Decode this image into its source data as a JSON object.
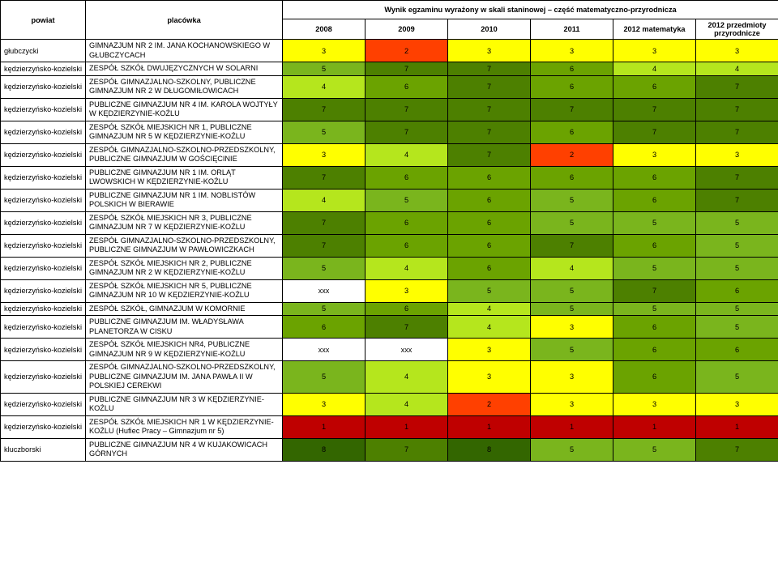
{
  "title": "Wynik egzaminu wyrażony w skali staninowej – część matematyczno-przyrodnicza",
  "headers": {
    "powiat": "powiat",
    "placowka": "placówka",
    "y2008": "2008",
    "y2009": "2009",
    "y2010": "2010",
    "y2011": "2011",
    "y2012m": "2012 matematyka",
    "y2012p": "2012 przedmioty przyrodnicze"
  },
  "palette": {
    "1": "#bf0000",
    "2": "#ff4000",
    "3": "#ffff00",
    "4": "#b5e61d",
    "5": "#7ab51d",
    "6": "#6ba300",
    "7": "#4d8000",
    "8": "#336600",
    "9": "#1f4d00",
    "xxx": "#ffffff"
  },
  "rows": [
    {
      "powiat": "głubczycki",
      "school": "GIMNAZJUM NR 2 IM. JANA KOCHANOWSKIEGO W GŁUBCZYCACH",
      "scores": [
        "3",
        "2",
        "3",
        "3",
        "3",
        "3"
      ]
    },
    {
      "powiat": "kędzierzyńsko-kozielski",
      "school": "ZESPÓŁ SZKÓŁ DWUJĘZYCZNYCH W SOLARNI",
      "scores": [
        "5",
        "7",
        "7",
        "6",
        "4",
        "4"
      ]
    },
    {
      "powiat": "kędzierzyńsko-kozielski",
      "school": "ZESPÓŁ GIMNAZJALNO-SZKOLNY, PUBLICZNE GIMNAZJUM NR 2 W DŁUGOMIŁOWICACH",
      "scores": [
        "4",
        "6",
        "7",
        "6",
        "6",
        "7"
      ]
    },
    {
      "powiat": "kędzierzyńsko-kozielski",
      "school": "PUBLICZNE GIMNAZJUM NR 4 IM. KAROLA WOJTYŁY W KĘDZIERZYNIE-KOŹLU",
      "scores": [
        "7",
        "7",
        "7",
        "7",
        "7",
        "7"
      ]
    },
    {
      "powiat": "kędzierzyńsko-kozielski",
      "school": "ZESPÓŁ SZKÓŁ MIEJSKICH NR 1, PUBLICZNE GIMNAZJUM NR 5 W KĘDZIERZYNIE-KOŹLU",
      "scores": [
        "5",
        "7",
        "7",
        "6",
        "7",
        "7"
      ]
    },
    {
      "powiat": "kędzierzyńsko-kozielski",
      "school": "ZESPÓŁ GIMNAZJALNO-SZKOLNO-PRZEDSZKOLNY, PUBLICZNE GIMNAZJUM W GOŚCIĘCINIE",
      "scores": [
        "3",
        "4",
        "7",
        "2",
        "3",
        "3"
      ]
    },
    {
      "powiat": "kędzierzyńsko-kozielski",
      "school": "PUBLICZNE GIMNAZJUM NR 1 IM. ORLĄT LWOWSKICH W KĘDZIERZYNIE-KOŹLU",
      "scores": [
        "7",
        "6",
        "6",
        "6",
        "6",
        "7"
      ]
    },
    {
      "powiat": "kędzierzyńsko-kozielski",
      "school": "PUBLICZNE GIMNAZJUM NR 1 IM. NOBLISTÓW POLSKICH W BIERAWIE",
      "scores": [
        "4",
        "5",
        "6",
        "5",
        "6",
        "7"
      ]
    },
    {
      "powiat": "kędzierzyńsko-kozielski",
      "school": "ZESPÓŁ SZKÓŁ MIEJSKICH NR 3, PUBLICZNE GIMNAZJUM NR 7 W KĘDZIERZYNIE-KOŹLU",
      "scores": [
        "7",
        "6",
        "6",
        "5",
        "5",
        "5"
      ]
    },
    {
      "powiat": "kędzierzyńsko-kozielski",
      "school": "ZESPÓŁ GIMNAZJALNO-SZKOLNO-PRZEDSZKOLNY, PUBLICZNE GIMNAZJUM W PAWŁOWICZKACH",
      "scores": [
        "7",
        "6",
        "6",
        "7",
        "6",
        "5"
      ]
    },
    {
      "powiat": "kędzierzyńsko-kozielski",
      "school": "ZESPÓŁ SZKÓŁ MIEJSKICH NR 2, PUBLICZNE  GIMNAZJUM NR 2 W KĘDZIERZYNIE-KOŹLU",
      "scores": [
        "5",
        "4",
        "6",
        "4",
        "5",
        "5"
      ]
    },
    {
      "powiat": "kędzierzyńsko-kozielski",
      "school": "ZESPÓŁ SZKÓŁ MIEJSKICH NR 5, PUBLICZNE GIMNAZJUM NR 10 W KĘDZIERZYNIE-KOŹLU",
      "scores": [
        "xxx",
        "3",
        "5",
        "5",
        "7",
        "6"
      ]
    },
    {
      "powiat": "kędzierzyńsko-kozielski",
      "school": "ZESPÓŁ SZKÓŁ, GIMNAZJUM W KOMORNIE",
      "scores": [
        "5",
        "6",
        "4",
        "5",
        "5",
        "5"
      ]
    },
    {
      "powiat": "kędzierzyńsko-kozielski",
      "school": "PUBLICZNE GIMNAZJUM IM. WŁADYSŁAWA PLANETORZA W CISKU",
      "scores": [
        "6",
        "7",
        "4",
        "3",
        "6",
        "5"
      ]
    },
    {
      "powiat": "kędzierzyńsko-kozielski",
      "school": "ZESPÓŁ SZKÓŁ MIEJSKICH NR4, PUBLICZNE GIMNAZJUM NR 9 W KĘDZIERZYNIE-KOŹLU",
      "scores": [
        "xxx",
        "xxx",
        "3",
        "5",
        "6",
        "6"
      ]
    },
    {
      "powiat": "kędzierzyńsko-kozielski",
      "school": "ZESPÓŁ GIMNAZJALNO-SZKOLNO-PRZEDSZKOLNY, PUBLICZNE GIMNAZJUM IM. JANA PAWŁA II W POLSKIEJ CEREKWI",
      "scores": [
        "5",
        "4",
        "3",
        "3",
        "6",
        "5"
      ]
    },
    {
      "powiat": "kędzierzyńsko-kozielski",
      "school": "PUBLICZNE GIMNAZJUM NR 3 W KĘDZIERZYNIE-KOŹLU",
      "scores": [
        "3",
        "4",
        "2",
        "3",
        "3",
        "3"
      ]
    },
    {
      "powiat": "kędzierzyńsko-kozielski",
      "school": "ZESPÓŁ SZKÓŁ MIEJSKICH NR 1 W KĘDZIERZYNIE-KOŹLU (Hufiec Pracy – Gimnazjum nr 5)",
      "scores": [
        "1",
        "1",
        "1",
        "1",
        "1",
        "1"
      ]
    },
    {
      "powiat": "kluczborski",
      "school": "PUBLICZNE GIMNAZJUM NR 4 W KUJAKOWICACH GÓRNYCH",
      "scores": [
        "8",
        "7",
        "8",
        "5",
        "5",
        "7"
      ]
    }
  ]
}
